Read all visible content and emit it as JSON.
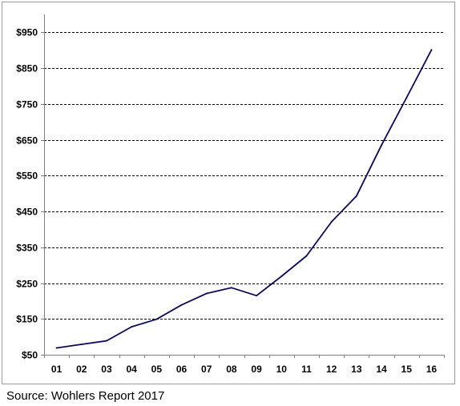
{
  "source_text": "Source: Wohlers Report 2017",
  "colors": {
    "line": "#0a0a5a",
    "grid": "#000000",
    "axis": "#808080",
    "background": "#ffffff"
  },
  "chart_data": {
    "type": "line",
    "title": "",
    "xlabel": "",
    "ylabel": "",
    "categories": [
      "01",
      "02",
      "03",
      "04",
      "05",
      "06",
      "07",
      "08",
      "09",
      "10",
      "11",
      "12",
      "13",
      "14",
      "15",
      "16"
    ],
    "series": [
      {
        "values": [
          69,
          79,
          89,
          128,
          149,
          189,
          221,
          237,
          215,
          269,
          326,
          421,
          493,
          635,
          767,
          901
        ]
      }
    ],
    "ylim": [
      50,
      1000
    ],
    "yticks": [
      50,
      150,
      250,
      350,
      450,
      550,
      650,
      750,
      850,
      950
    ],
    "ytick_labels": [
      "$50",
      "$150",
      "$250",
      "$350",
      "$450",
      "$550",
      "$650",
      "$750",
      "$850",
      "$950"
    ],
    "grid": "horizontal-dashed",
    "legend": "none"
  }
}
